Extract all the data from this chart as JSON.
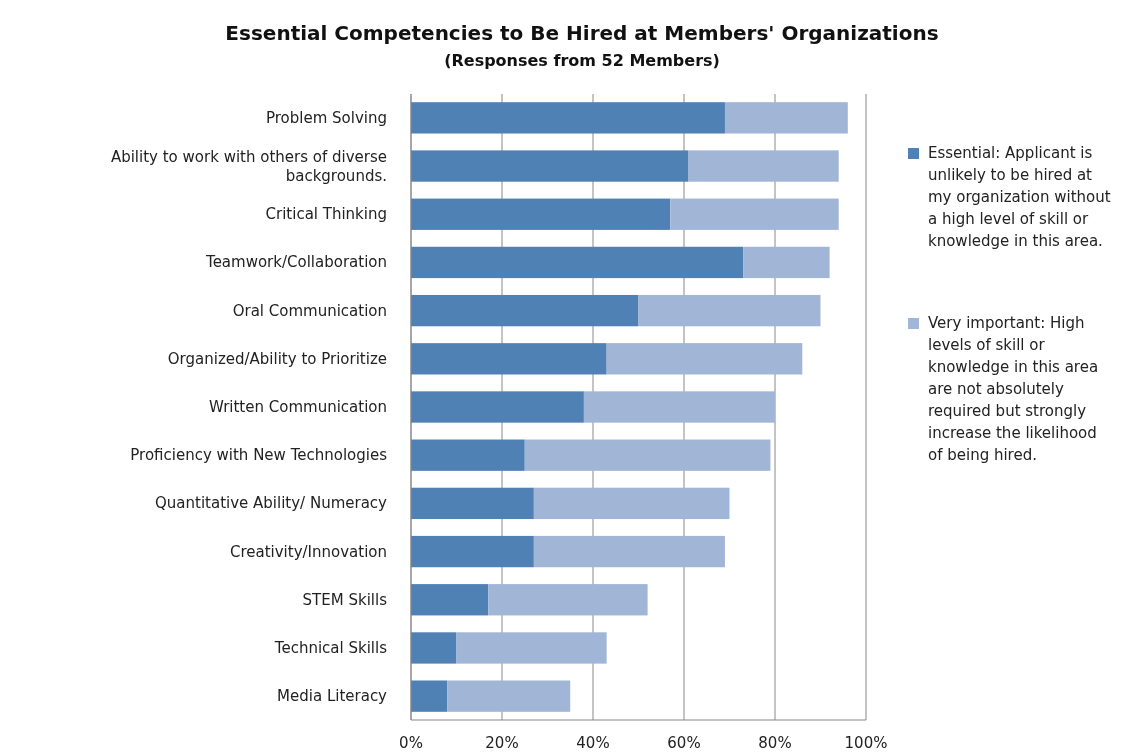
{
  "chart_data": {
    "type": "bar",
    "orientation": "horizontal",
    "stacked": true,
    "title": "Essential Competencies to Be Hired at Members' Organizations",
    "subtitle": "(Responses from 52 Members)",
    "categories": [
      "Problem Solving",
      "Ability to work with others of diverse backgrounds.",
      "Critical Thinking",
      "Teamwork/Collaboration",
      "Oral Communication",
      "Organized/Ability to Prioritize",
      "Written Communication",
      "Proficiency with New Technologies",
      "Quantitative Ability/ Numeracy",
      "Creativity/Innovation",
      "STEM Skills",
      "Technical Skills",
      "Media Literacy"
    ],
    "series": [
      {
        "name": "Essential: Applicant is unlikely to be hired at my organization without a high level of skill or knowledge in this area.",
        "color": "#4f81b4",
        "values": [
          69,
          61,
          57,
          73,
          50,
          43,
          38,
          25,
          27,
          27,
          17,
          10,
          8
        ]
      },
      {
        "name": "Very important: High levels of skill or knowledge in this area are not absolutely required but strongly increase the likelihood of being hired.",
        "color": "#a1b5d6",
        "values": [
          27,
          33,
          37,
          19,
          40,
          43,
          42,
          54,
          43,
          42,
          35,
          33,
          27
        ]
      }
    ],
    "xlim": [
      0,
      100
    ],
    "xticks": [
      {
        "value": 0,
        "label": "0%"
      },
      {
        "value": 20,
        "label": "20%"
      },
      {
        "value": 40,
        "label": "40%"
      },
      {
        "value": 60,
        "label": "60%"
      },
      {
        "value": 80,
        "label": "80%"
      },
      {
        "value": 100,
        "label": "100%"
      }
    ],
    "grid": "x",
    "legend": "right"
  }
}
